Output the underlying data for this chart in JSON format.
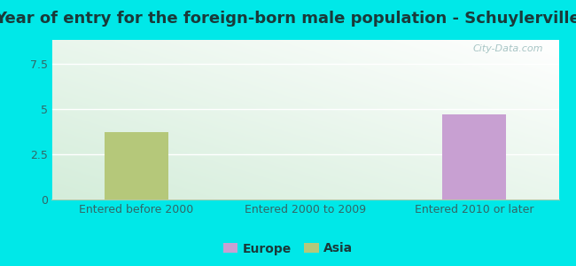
{
  "title": "Year of entry for the foreign-born male population - Schuylerville",
  "categories": [
    "Entered before 2000",
    "Entered 2000 to 2009",
    "Entered 2010 or later"
  ],
  "series": [
    {
      "label": "Europe",
      "color": "#c8a0d2",
      "values": [
        0,
        0,
        4.7
      ]
    },
    {
      "label": "Asia",
      "color": "#b5c87a",
      "values": [
        3.7,
        0,
        0
      ]
    }
  ],
  "ylim": [
    0,
    8.8
  ],
  "yticks": [
    0,
    2.5,
    5,
    7.5
  ],
  "background_outer": "#00e8e8",
  "bar_width": 0.38,
  "title_fontsize": 13,
  "title_color": "#1a3a3a",
  "legend_fontsize": 10,
  "tick_fontsize": 9,
  "tick_color": "#336666",
  "watermark": "City-Data.com"
}
